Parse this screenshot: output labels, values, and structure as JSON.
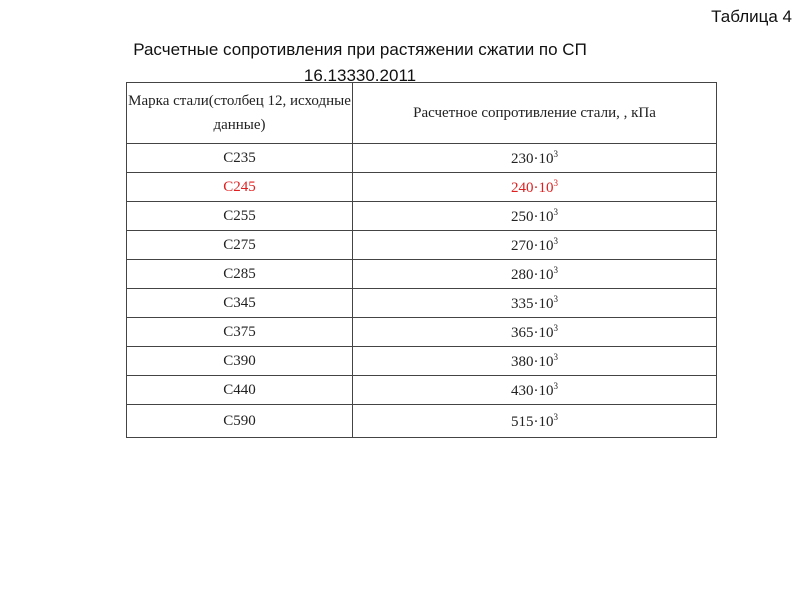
{
  "table_label": "Таблица 4",
  "title": "Расчетные сопротивления при растяжении сжатии по СП 16.13330.2011",
  "headers": [
    "Марка стали(столбец 12, исходные данные)",
    "Расчетное сопротивление стали, , кПа"
  ],
  "highlight_color": "#e02020",
  "rows": [
    {
      "grade": "С235",
      "value": "230·10",
      "exp": "3",
      "highlight": false
    },
    {
      "grade": "С245",
      "value": "240·10",
      "exp": "3",
      "highlight": true
    },
    {
      "grade": "С255",
      "value": "250·10",
      "exp": "3",
      "highlight": false
    },
    {
      "grade": "С275",
      "value": "270·10",
      "exp": "3",
      "highlight": false
    },
    {
      "grade": "С285",
      "value": "280·10",
      "exp": "3",
      "highlight": false
    },
    {
      "grade": "С345",
      "value": "335·10",
      "exp": "3",
      "highlight": false
    },
    {
      "grade": "С375",
      "value": "365·10",
      "exp": "3",
      "highlight": false
    },
    {
      "grade": "С390",
      "value": "380·10",
      "exp": "3",
      "highlight": false
    },
    {
      "grade": "С440",
      "value": "430·10",
      "exp": "3",
      "highlight": false
    },
    {
      "grade": "С590",
      "value": "515·10",
      "exp": "3",
      "highlight": false
    }
  ]
}
